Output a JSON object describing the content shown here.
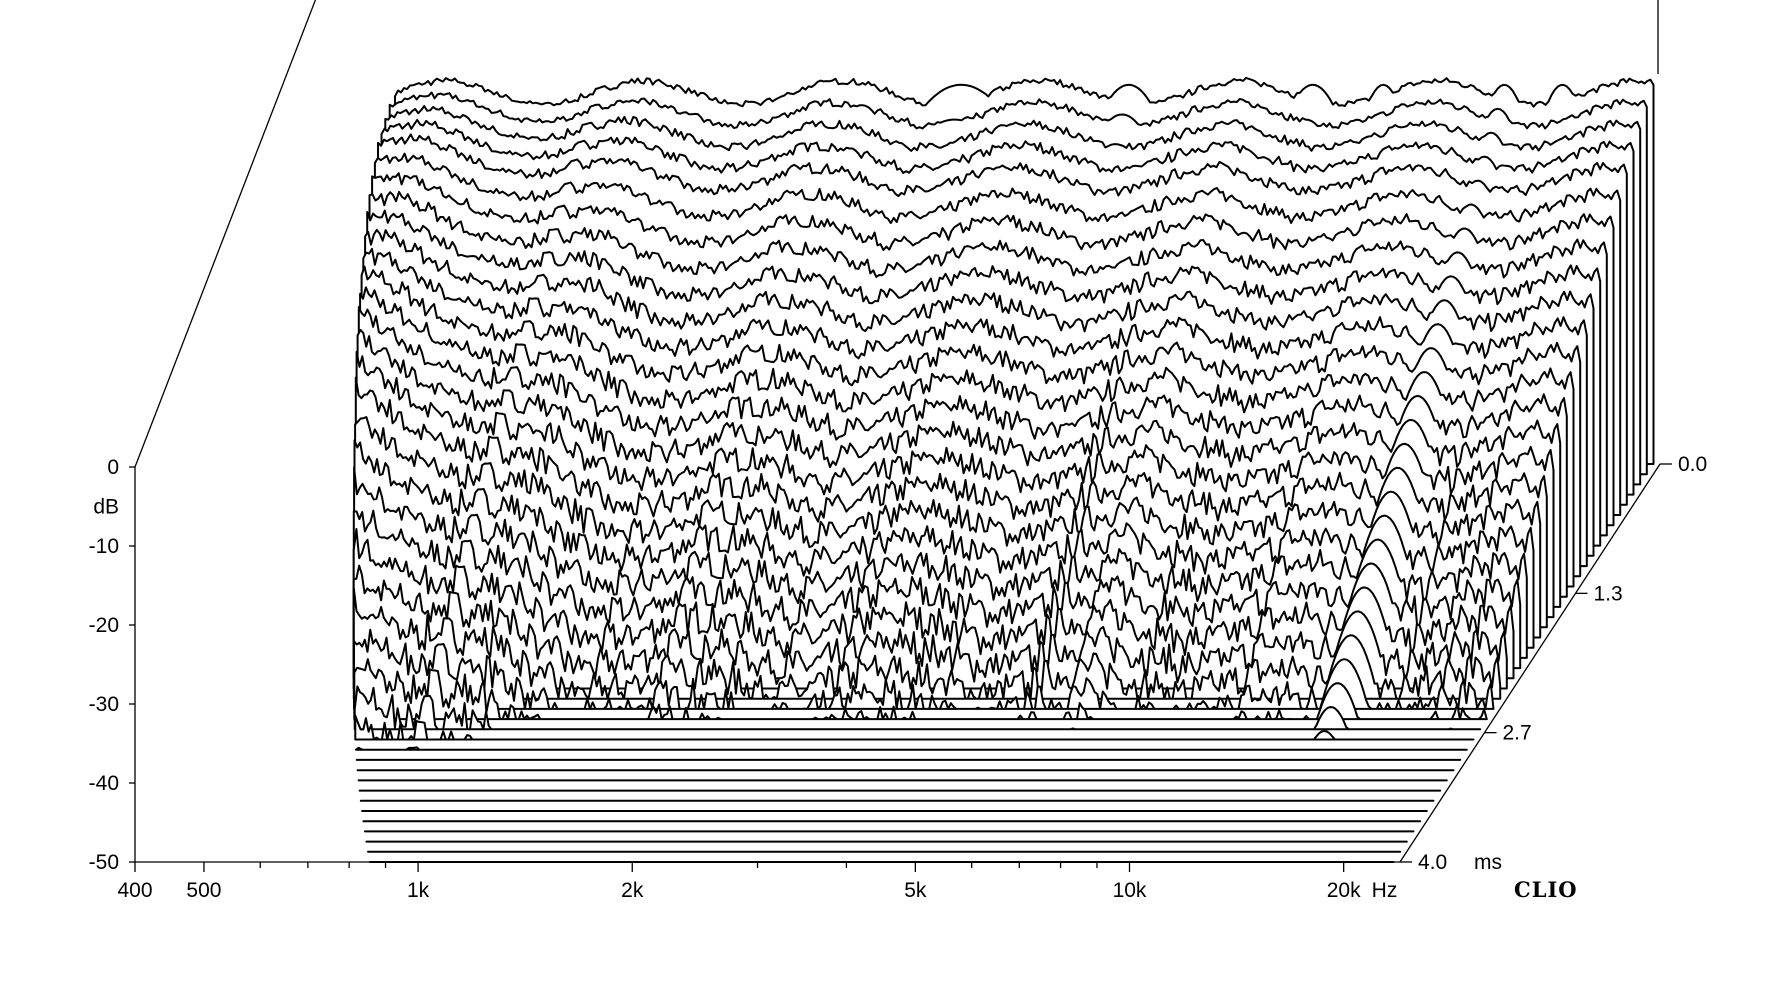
{
  "chart_data": {
    "type": "waterfall",
    "title": "",
    "x_axis": {
      "scale": "log",
      "range_hz": [
        400,
        24000
      ],
      "unit_label": "Hz",
      "tick_labels": [
        {
          "value": 400,
          "label": "400"
        },
        {
          "value": 500,
          "label": "500"
        },
        {
          "value": 1000,
          "label": "1k"
        },
        {
          "value": 2000,
          "label": "2k"
        },
        {
          "value": 5000,
          "label": "5k"
        },
        {
          "value": 10000,
          "label": "10k"
        },
        {
          "value": 20000,
          "label": "20k"
        }
      ],
      "minor_ticks_hz": [
        600,
        700,
        800,
        900,
        3000,
        4000,
        6000,
        7000,
        8000,
        9000
      ]
    },
    "y_axis": {
      "unit_label": "dB",
      "range_db": [
        -50,
        0
      ],
      "tick_labels": [
        {
          "value": 0,
          "label": "0"
        },
        {
          "value": -10,
          "label": "-10"
        },
        {
          "value": -20,
          "label": "-20"
        },
        {
          "value": -30,
          "label": "-30"
        },
        {
          "value": -40,
          "label": "-40"
        },
        {
          "value": -50,
          "label": "-50"
        }
      ]
    },
    "time_axis": {
      "unit_label": "ms",
      "range_ms": [
        0,
        4.0
      ],
      "tick_labels": [
        {
          "value": 0,
          "label": "0.0"
        },
        {
          "value": 1.3,
          "label": "1.3"
        },
        {
          "value": 2.7,
          "label": "2.7"
        },
        {
          "value": 4.0,
          "label": "4.0"
        }
      ]
    },
    "slice_count": 40,
    "brand_label": "CLIO"
  }
}
